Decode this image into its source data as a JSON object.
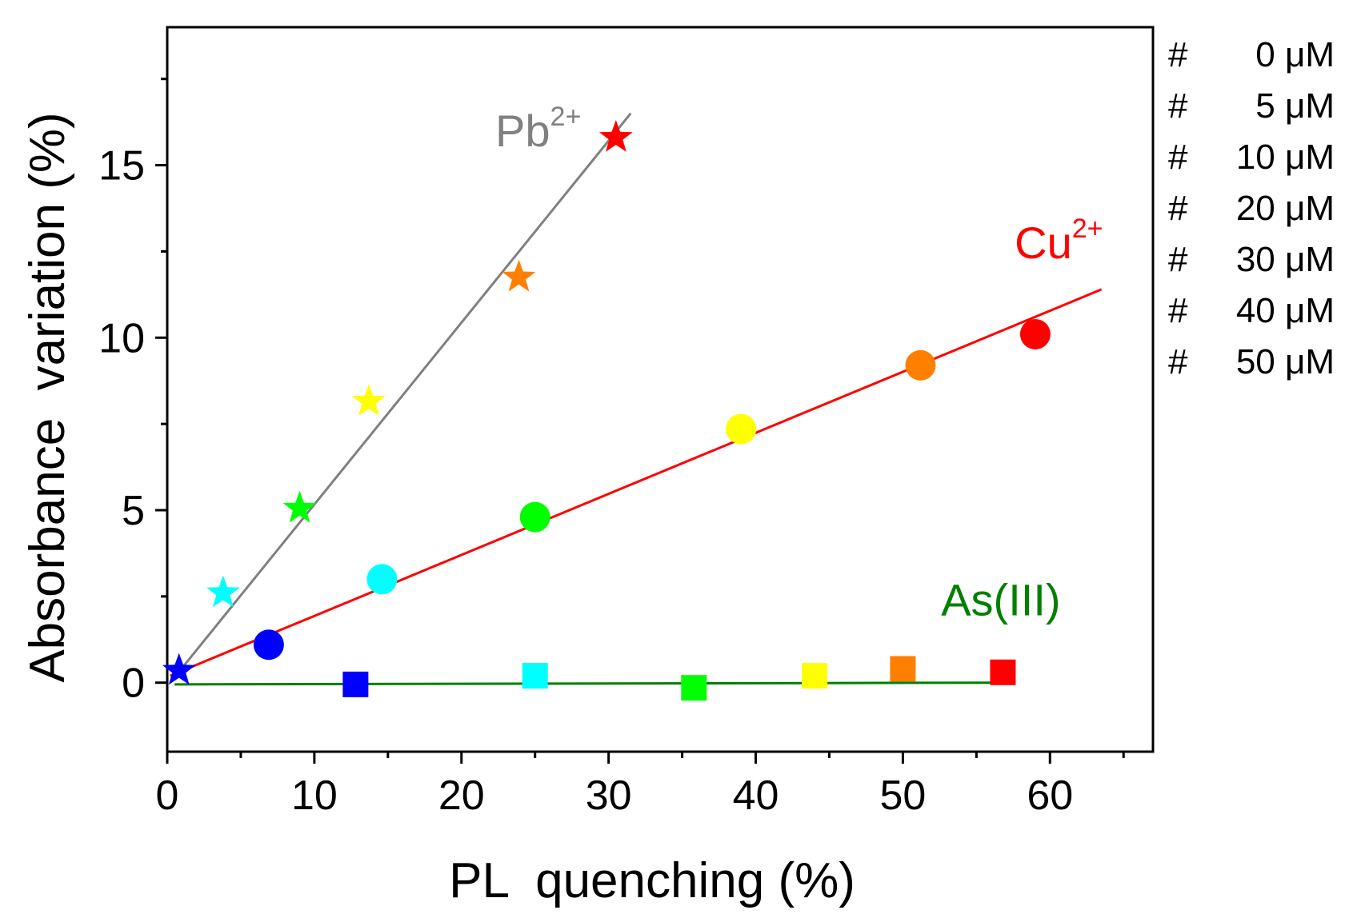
{
  "chart_data": {
    "type": "scatter",
    "xlabel": "PL  quenching (%)",
    "ylabel": "Absorbance  variation (%)",
    "xlim": [
      0,
      67
    ],
    "ylim": [
      -2,
      19
    ],
    "xticks": [
      0,
      10,
      20,
      30,
      40,
      50,
      60
    ],
    "yticks": [
      0,
      5,
      10,
      15
    ],
    "legend": {
      "placement": "right",
      "symbol": "#",
      "entries": [
        {
          "label": "0 μM",
          "color": "#000000"
        },
        {
          "label": "5 μM",
          "color": "#0000ff"
        },
        {
          "label": "10 μM",
          "color": "#00ffff"
        },
        {
          "label": "20 μM",
          "color": "#00ff00"
        },
        {
          "label": "30 μM",
          "color": "#ffff00"
        },
        {
          "label": "40 μM",
          "color": "#ff8000"
        },
        {
          "label": "50 μM",
          "color": "#ff0000"
        }
      ]
    },
    "series": [
      {
        "name": "Pb2+",
        "label_base": "Pb",
        "label_sup": "2+",
        "marker": "star",
        "line_color": "#808080",
        "label_color": "#808080",
        "fit": {
          "x": [
            0.2,
            31.5
          ],
          "y": [
            0.0,
            16.5
          ]
        },
        "points": [
          {
            "x": 0.8,
            "y": 0.35,
            "color": "#0000ff"
          },
          {
            "x": 3.8,
            "y": 2.6,
            "color": "#00ffff"
          },
          {
            "x": 9.0,
            "y": 5.05,
            "color": "#00ff00"
          },
          {
            "x": 13.7,
            "y": 8.15,
            "color": "#ffff00"
          },
          {
            "x": 23.9,
            "y": 11.75,
            "color": "#ff8000"
          },
          {
            "x": 30.5,
            "y": 15.8,
            "color": "#ff0000"
          }
        ]
      },
      {
        "name": "Cu2+",
        "label_base": "Cu",
        "label_sup": "2+",
        "marker": "circle",
        "line_color": "#ff0000",
        "label_color": "#ff0000",
        "fit": {
          "x": [
            0.2,
            63.5
          ],
          "y": [
            0.2,
            11.4
          ]
        },
        "points": [
          {
            "x": 6.9,
            "y": 1.1,
            "color": "#0000ff"
          },
          {
            "x": 14.6,
            "y": 3.0,
            "color": "#00ffff"
          },
          {
            "x": 25.0,
            "y": 4.8,
            "color": "#00ff00"
          },
          {
            "x": 39.0,
            "y": 7.35,
            "color": "#ffff00"
          },
          {
            "x": 51.2,
            "y": 9.2,
            "color": "#ff8000"
          },
          {
            "x": 59.0,
            "y": 10.1,
            "color": "#ff0000"
          }
        ]
      },
      {
        "name": "As(III)",
        "label_base": "As(III)",
        "label_sup": "",
        "marker": "square",
        "line_color": "#008000",
        "label_color": "#008000",
        "fit": {
          "x": [
            0.5,
            56.5
          ],
          "y": [
            -0.05,
            0.0
          ]
        },
        "points": [
          {
            "x": 12.8,
            "y": -0.05,
            "color": "#0000ff"
          },
          {
            "x": 25.0,
            "y": 0.2,
            "color": "#00ffff"
          },
          {
            "x": 35.8,
            "y": -0.15,
            "color": "#00ff00"
          },
          {
            "x": 44.0,
            "y": 0.2,
            "color": "#ffff00"
          },
          {
            "x": 50.0,
            "y": 0.4,
            "color": "#ff8000"
          },
          {
            "x": 56.8,
            "y": 0.3,
            "color": "#ff0000"
          }
        ]
      }
    ]
  }
}
